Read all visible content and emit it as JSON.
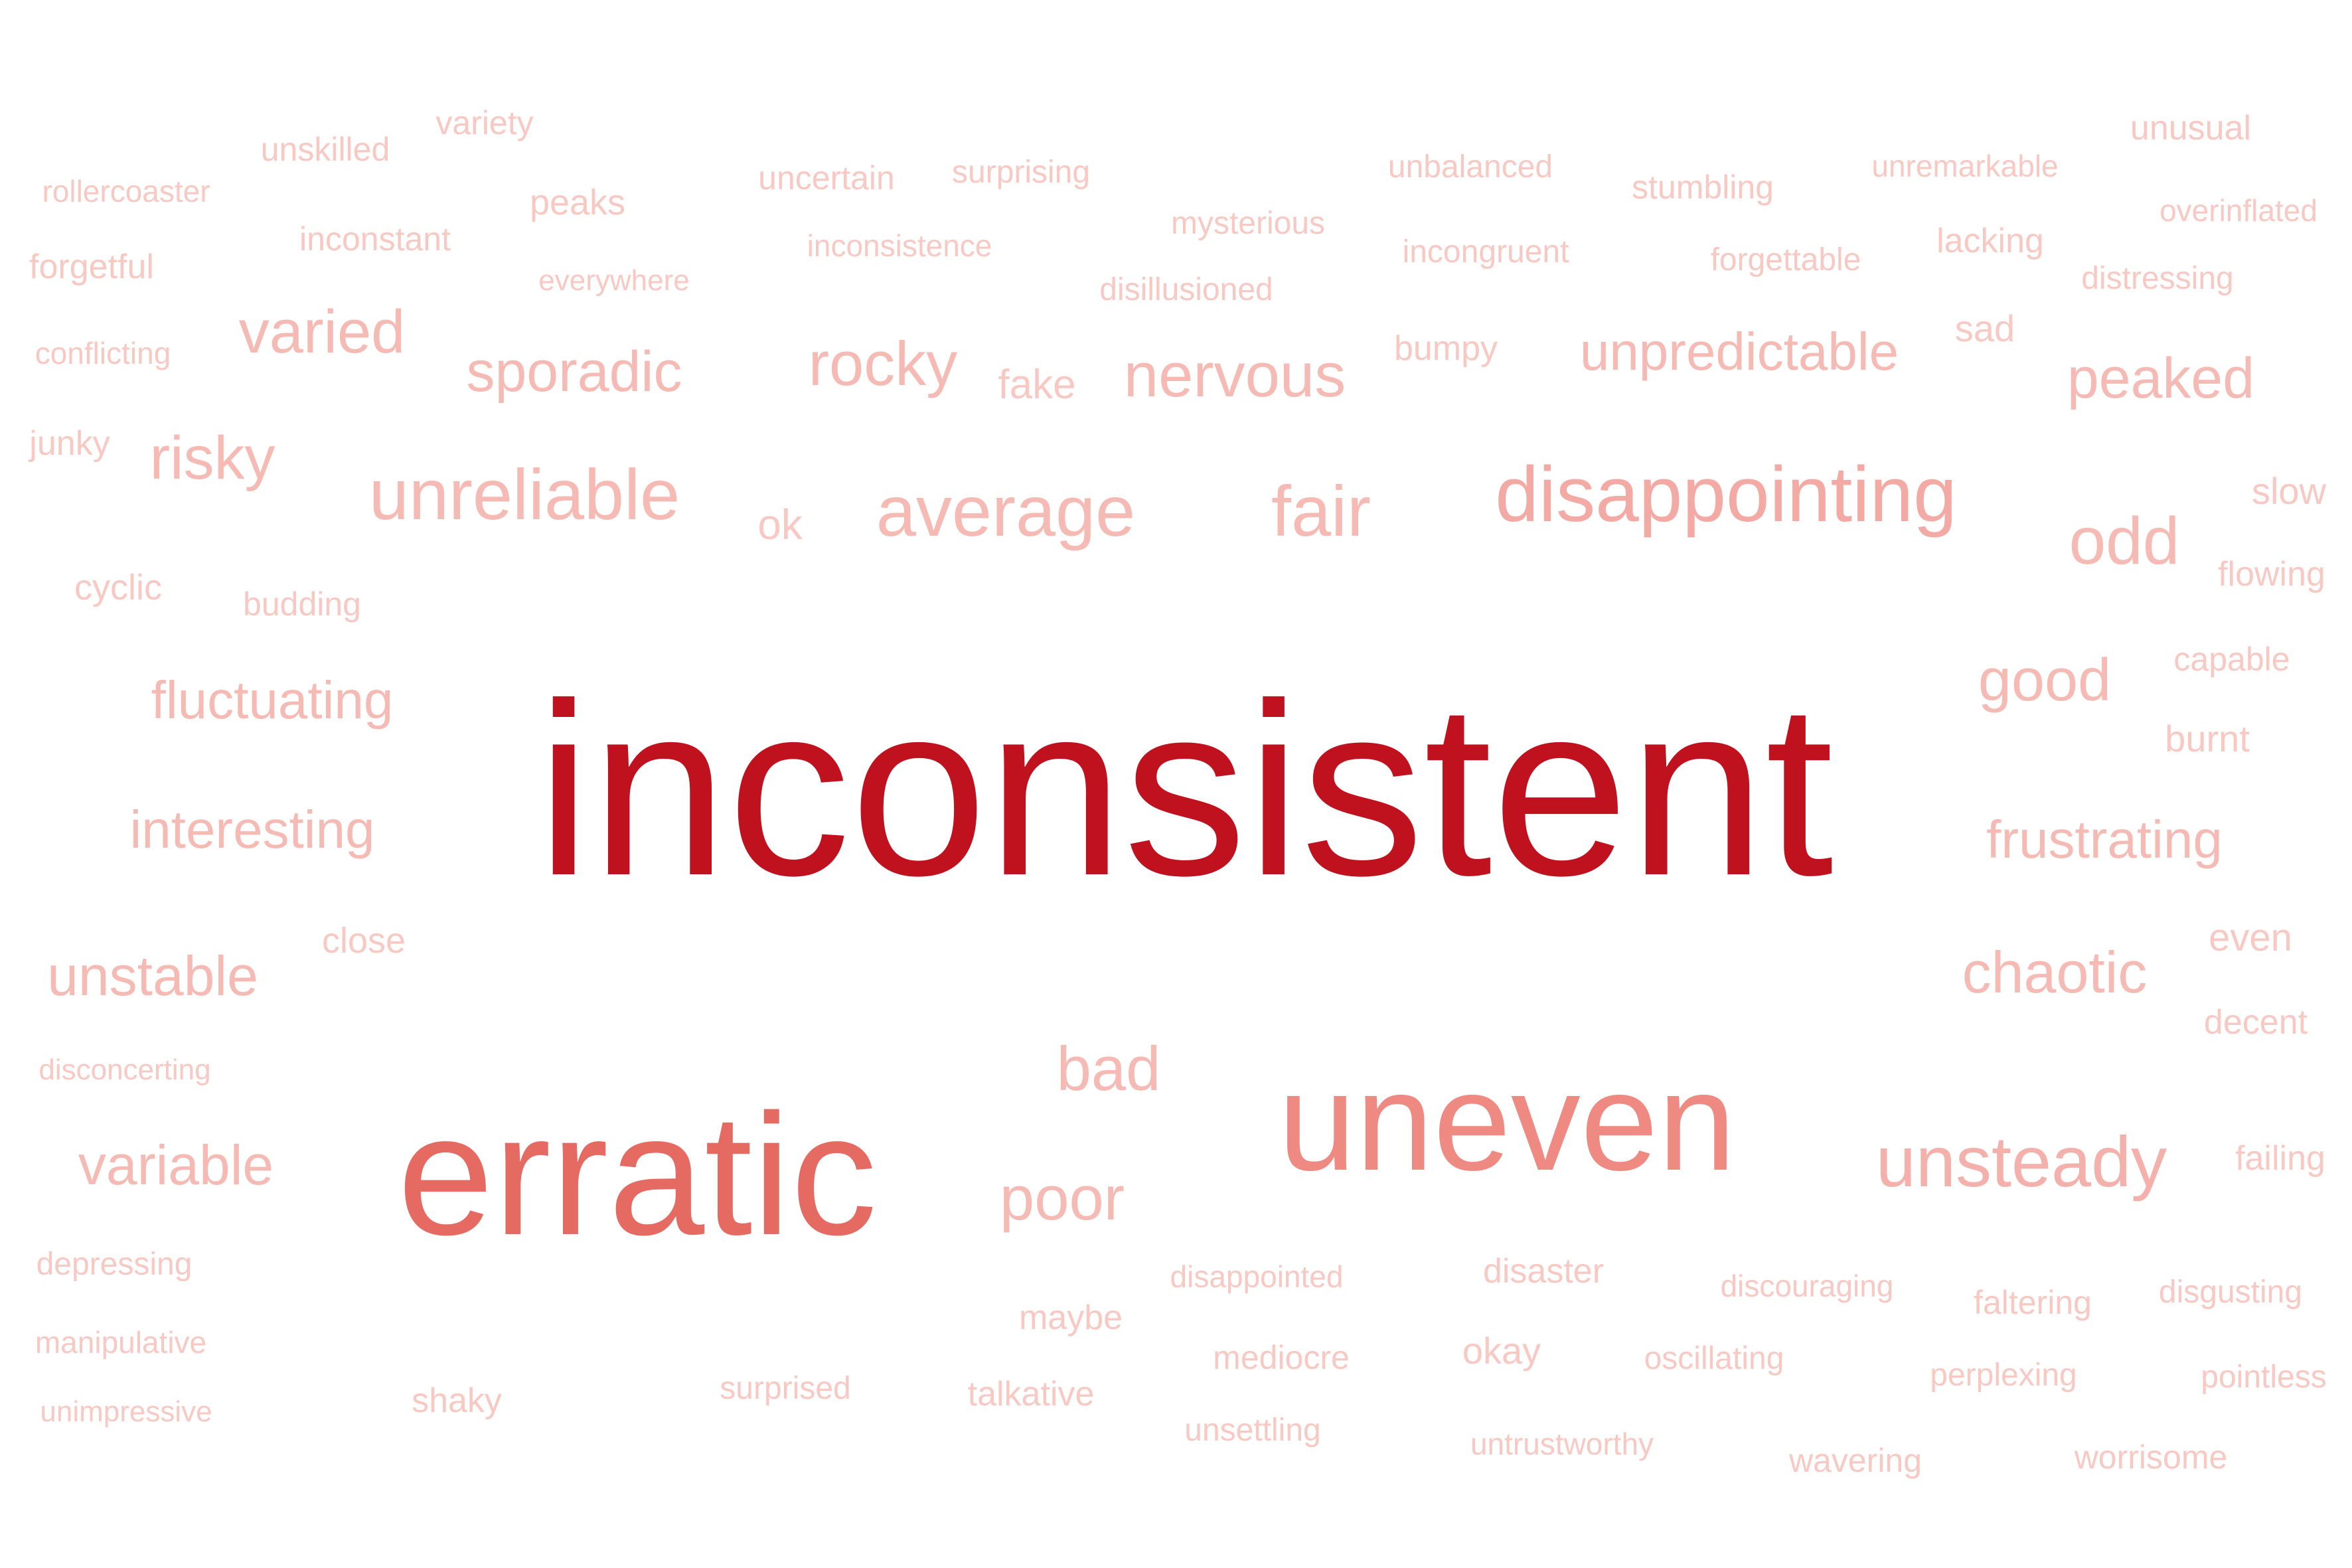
{
  "word_cloud": {
    "words": [
      {
        "text": "inconsistent",
        "color": "#c0111f"
      },
      {
        "text": "erratic",
        "color": "#e46a62"
      },
      {
        "text": "uneven",
        "color": "#ee8a82"
      },
      {
        "text": "disappointing",
        "color": "#f3aaa5"
      },
      {
        "text": "unsteady",
        "color": "#f4b0aa"
      },
      {
        "text": "average",
        "color": "#f6bab4"
      },
      {
        "text": "unreliable",
        "color": "#f6bab4"
      },
      {
        "text": "fair",
        "color": "#f6bab4"
      },
      {
        "text": "odd",
        "color": "#f6bab4"
      },
      {
        "text": "nervous",
        "color": "#f6bab4"
      },
      {
        "text": "rocky",
        "color": "#f6bab4"
      },
      {
        "text": "sporadic",
        "color": "#f6bab4"
      },
      {
        "text": "varied",
        "color": "#f6bab4"
      },
      {
        "text": "risky",
        "color": "#f6bab4"
      },
      {
        "text": "unpredictable",
        "color": "#f6bab4"
      },
      {
        "text": "peaked",
        "color": "#f6bab4"
      },
      {
        "text": "good",
        "color": "#f6bab4"
      },
      {
        "text": "frustrating",
        "color": "#f6bab4"
      },
      {
        "text": "chaotic",
        "color": "#f6bab4"
      },
      {
        "text": "fluctuating",
        "color": "#f6bab4"
      },
      {
        "text": "interesting",
        "color": "#f6bab4"
      },
      {
        "text": "unstable",
        "color": "#f6bab4"
      },
      {
        "text": "variable",
        "color": "#f6bab4"
      },
      {
        "text": "bad",
        "color": "#f6bab4"
      },
      {
        "text": "poor",
        "color": "#f6bab4"
      },
      {
        "text": "rollercoaster",
        "color": "#f8c8c3"
      },
      {
        "text": "unskilled",
        "color": "#f8c8c3"
      },
      {
        "text": "variety",
        "color": "#f8c8c3"
      },
      {
        "text": "peaks",
        "color": "#f8c8c3"
      },
      {
        "text": "uncertain",
        "color": "#f8c8c3"
      },
      {
        "text": "surprising",
        "color": "#f8c8c3"
      },
      {
        "text": "unbalanced",
        "color": "#f8c8c3"
      },
      {
        "text": "stumbling",
        "color": "#f8c8c3"
      },
      {
        "text": "unremarkable",
        "color": "#f8c8c3"
      },
      {
        "text": "unusual",
        "color": "#f8c8c3"
      },
      {
        "text": "overinflated",
        "color": "#f8c8c3"
      },
      {
        "text": "forgetful",
        "color": "#f8c8c3"
      },
      {
        "text": "inconstant",
        "color": "#f8c8c3"
      },
      {
        "text": "everywhere",
        "color": "#f8c8c3"
      },
      {
        "text": "inconsistence",
        "color": "#f8c8c3"
      },
      {
        "text": "mysterious",
        "color": "#f8c8c3"
      },
      {
        "text": "incongruent",
        "color": "#f8c8c3"
      },
      {
        "text": "forgettable",
        "color": "#f8c8c3"
      },
      {
        "text": "lacking",
        "color": "#f8c8c3"
      },
      {
        "text": "distressing",
        "color": "#f8c8c3"
      },
      {
        "text": "disillusioned",
        "color": "#f8c8c3"
      },
      {
        "text": "conflicting",
        "color": "#f8c8c3"
      },
      {
        "text": "bumpy",
        "color": "#f8c8c3"
      },
      {
        "text": "sad",
        "color": "#f8c8c3"
      },
      {
        "text": "fake",
        "color": "#f8c8c3"
      },
      {
        "text": "junky",
        "color": "#f8c8c3"
      },
      {
        "text": "ok",
        "color": "#f8c8c3"
      },
      {
        "text": "slow",
        "color": "#f8c8c3"
      },
      {
        "text": "flowing",
        "color": "#f8c8c3"
      },
      {
        "text": "cyclic",
        "color": "#f8c8c3"
      },
      {
        "text": "budding",
        "color": "#f8c8c3"
      },
      {
        "text": "capable",
        "color": "#f8c8c3"
      },
      {
        "text": "burnt",
        "color": "#f8c8c3"
      },
      {
        "text": "close",
        "color": "#f8c8c3"
      },
      {
        "text": "even",
        "color": "#f8c8c3"
      },
      {
        "text": "decent",
        "color": "#f8c8c3"
      },
      {
        "text": "disconcerting",
        "color": "#f8c8c3"
      },
      {
        "text": "failing",
        "color": "#f8c8c3"
      },
      {
        "text": "depressing",
        "color": "#f8c8c3"
      },
      {
        "text": "disappointed",
        "color": "#f8c8c3"
      },
      {
        "text": "disaster",
        "color": "#f8c8c3"
      },
      {
        "text": "discouraging",
        "color": "#f8c8c3"
      },
      {
        "text": "faltering",
        "color": "#f8c8c3"
      },
      {
        "text": "disgusting",
        "color": "#f8c8c3"
      },
      {
        "text": "maybe",
        "color": "#f8c8c3"
      },
      {
        "text": "manipulative",
        "color": "#f8c8c3"
      },
      {
        "text": "mediocre",
        "color": "#f8c8c3"
      },
      {
        "text": "okay",
        "color": "#f8c8c3"
      },
      {
        "text": "oscillating",
        "color": "#f8c8c3"
      },
      {
        "text": "perplexing",
        "color": "#f8c8c3"
      },
      {
        "text": "pointless",
        "color": "#f8c8c3"
      },
      {
        "text": "unimpressive",
        "color": "#f8c8c3"
      },
      {
        "text": "shaky",
        "color": "#f8c8c3"
      },
      {
        "text": "surprised",
        "color": "#f8c8c3"
      },
      {
        "text": "talkative",
        "color": "#f8c8c3"
      },
      {
        "text": "unsettling",
        "color": "#f8c8c3"
      },
      {
        "text": "untrustworthy",
        "color": "#f8c8c3"
      },
      {
        "text": "wavering",
        "color": "#f8c8c3"
      },
      {
        "text": "worrisome",
        "color": "#f8c8c3"
      }
    ]
  }
}
